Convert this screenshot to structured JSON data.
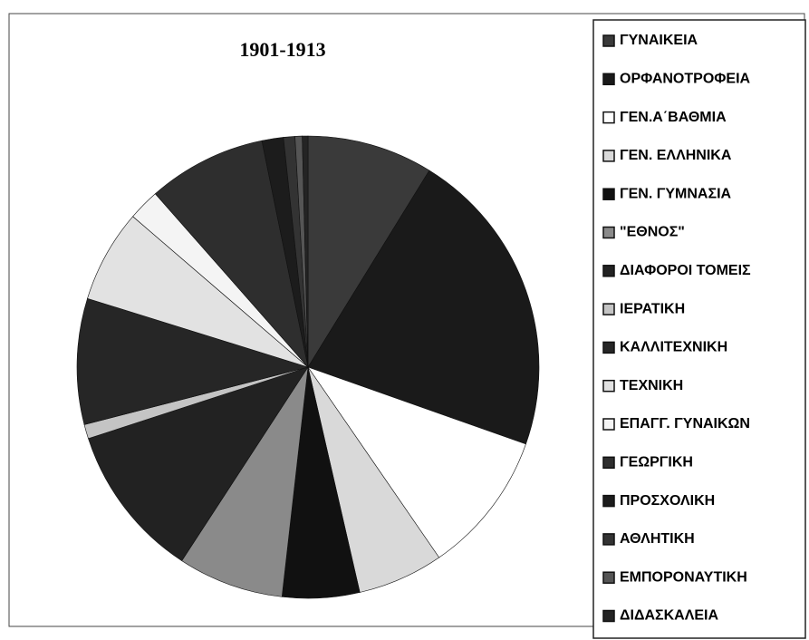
{
  "chart_data": {
    "type": "pie",
    "title": "1901-1913",
    "categories": [
      "ΓΥΝΑΙΚΕΙΑ",
      "ΟΡΦΑΝΟΤΡΟΦΕΙΑ",
      "ΓΕΝ.Α΄ΒΑΘΜΙΑ",
      "ΓΕΝ. ΕΛΛΗΝΙΚΑ",
      "ΓΕΝ. ΓΥΜΝΑΣΙΑ",
      "\"ΕΘΝΟΣ\"",
      "ΔΙΑΦΟΡΟΙ ΤΟΜΕΙΣ",
      "ΙΕΡΑΤΙΚΗ",
      "ΚΑΛΛΙΤΕΧΝΙΚΗ",
      "ΤΕΧΝΙΚΗ",
      "ΕΠΑΓΓ. ΓΥΝΑΙΚΩΝ",
      "ΓΕΩΡΓΙΚΗ",
      "ΠΡΟΣΧΟΛΙΚΗ",
      "ΑΘΛΗΤΙΚΗ",
      "ΕΜΠΟΡΟΝΑΥΤΙΚΗ",
      "ΔΙΔΑΣΚΑΛΕΙΑ"
    ],
    "values": [
      8.8,
      21.6,
      10,
      6,
      5.4,
      7.4,
      10.8,
      1,
      8.8,
      6.5,
      2.2,
      8.3,
      1.5,
      0.8,
      0.5,
      0.4
    ],
    "colors": [
      "#3a3a3a",
      "#1a1a1a",
      "#ffffff",
      "#d9d9d9",
      "#111111",
      "#8a8a8a",
      "#222222",
      "#c4c4c4",
      "#262626",
      "#e2e2e2",
      "#f4f4f4",
      "#2e2e2e",
      "#1c1c1c",
      "#333333",
      "#555555",
      "#242424"
    ]
  }
}
